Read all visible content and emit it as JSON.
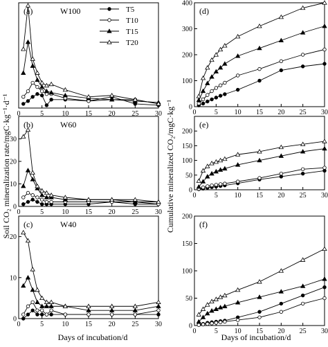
{
  "figure": {
    "ylabel_left": "Soil CO₂ mineralization rate/mgC·kg⁻¹·d⁻¹",
    "ylabel_right": "Cumulative mineralized CO₂/mgC·kg⁻¹",
    "xlabel": "Days of incubation/d"
  },
  "legend": {
    "entries": [
      "T5",
      "T10",
      "T15",
      "T20"
    ]
  },
  "chart_data": [
    {
      "id": "a",
      "panel_label": "(a)",
      "title": "W100",
      "type": "line",
      "x": [
        1,
        2,
        3,
        4,
        5,
        6,
        7,
        10,
        15,
        20,
        25,
        30
      ],
      "xlim": [
        0,
        30
      ],
      "ylim": [
        0,
        75
      ],
      "xticks": [
        0,
        5,
        10,
        15,
        20,
        25,
        30
      ],
      "yticks": [],
      "grid": false,
      "legend": "top-right",
      "series": [
        {
          "name": "T5",
          "marker": "circle-filled",
          "values": [
            3,
            5,
            8,
            10,
            9,
            2,
            6,
            6,
            5,
            8,
            3,
            2
          ]
        },
        {
          "name": "T10",
          "marker": "circle-open",
          "values": [
            8,
            12,
            18,
            15,
            12,
            10,
            10,
            7,
            5,
            6,
            6,
            3
          ]
        },
        {
          "name": "T15",
          "marker": "triangle-filled",
          "values": [
            25,
            47,
            30,
            20,
            15,
            12,
            11,
            9,
            7,
            6,
            5,
            4
          ]
        },
        {
          "name": "T20",
          "marker": "triangle-open",
          "values": [
            42,
            73,
            35,
            25,
            18,
            16,
            17,
            13,
            8,
            9,
            6,
            3
          ]
        }
      ]
    },
    {
      "id": "b",
      "panel_label": "(b)",
      "title": "W60",
      "type": "line",
      "x": [
        1,
        2,
        3,
        4,
        5,
        6,
        7,
        10,
        15,
        20,
        25,
        30
      ],
      "xlim": [
        0,
        30
      ],
      "ylim": [
        0,
        40
      ],
      "xticks": [
        0,
        5,
        10,
        15,
        20,
        25,
        30
      ],
      "yticks": [
        0,
        10,
        20,
        30
      ],
      "grid": false,
      "series": [
        {
          "name": "T5",
          "marker": "circle-filled",
          "values": [
            1,
            2,
            3,
            2,
            1,
            1,
            1,
            1,
            1,
            2,
            1,
            1
          ]
        },
        {
          "name": "T10",
          "marker": "circle-open",
          "values": [
            4,
            6,
            5,
            4,
            3,
            2,
            2,
            2,
            2,
            2,
            2,
            1
          ]
        },
        {
          "name": "T15",
          "marker": "triangle-filled",
          "values": [
            9,
            16,
            12,
            8,
            5,
            4,
            4,
            3,
            3,
            3,
            2,
            2
          ]
        },
        {
          "name": "T20",
          "marker": "triangle-open",
          "values": [
            31,
            34,
            15,
            9,
            7,
            6,
            5,
            4,
            3,
            3,
            3,
            2
          ]
        }
      ]
    },
    {
      "id": "c",
      "panel_label": "(c)",
      "title": "W40",
      "type": "line",
      "x": [
        1,
        2,
        3,
        4,
        5,
        6,
        7,
        10,
        15,
        20,
        25,
        30
      ],
      "xlim": [
        0,
        30
      ],
      "ylim": [
        0,
        25
      ],
      "xticks": [
        0,
        5,
        10,
        15,
        20,
        25,
        30
      ],
      "yticks": [
        0,
        10,
        20
      ],
      "grid": false,
      "series": [
        {
          "name": "T5",
          "marker": "circle-filled",
          "values": [
            0,
            1,
            2,
            1,
            1,
            1,
            1,
            1,
            1,
            1,
            1,
            1
          ]
        },
        {
          "name": "T10",
          "marker": "circle-open",
          "values": [
            1,
            3,
            4,
            2,
            2,
            1,
            2,
            1,
            1,
            1,
            1,
            2
          ]
        },
        {
          "name": "T15",
          "marker": "triangle-filled",
          "values": [
            8,
            10,
            7,
            4,
            3,
            3,
            3,
            3,
            2,
            2,
            2,
            3
          ]
        },
        {
          "name": "T20",
          "marker": "triangle-open",
          "values": [
            21,
            19,
            12,
            7,
            5,
            4,
            4,
            3,
            3,
            3,
            3,
            4
          ]
        }
      ]
    },
    {
      "id": "d",
      "panel_label": "(d)",
      "type": "line",
      "x": [
        1,
        2,
        3,
        4,
        5,
        6,
        7,
        10,
        15,
        20,
        25,
        30
      ],
      "xlim": [
        0,
        30
      ],
      "ylim": [
        0,
        400
      ],
      "xticks": [
        0,
        5,
        10,
        15,
        20,
        25,
        30
      ],
      "xtick_labels": [
        "0",
        "5",
        "10",
        "15",
        "20",
        "25",
        "30"
      ],
      "yticks": [
        0,
        100,
        200,
        300,
        400
      ],
      "grid": false,
      "series": [
        {
          "name": "T5",
          "marker": "circle-filled",
          "values": [
            5,
            12,
            20,
            28,
            35,
            42,
            48,
            65,
            100,
            140,
            155,
            165
          ]
        },
        {
          "name": "T10",
          "marker": "circle-open",
          "values": [
            12,
            28,
            45,
            60,
            72,
            82,
            92,
            120,
            145,
            175,
            200,
            220
          ]
        },
        {
          "name": "T15",
          "marker": "triangle-filled",
          "values": [
            25,
            60,
            90,
            115,
            135,
            150,
            165,
            195,
            225,
            255,
            285,
            310
          ]
        },
        {
          "name": "T20",
          "marker": "triangle-open",
          "values": [
            40,
            110,
            150,
            180,
            200,
            220,
            235,
            270,
            310,
            345,
            380,
            400
          ]
        }
      ]
    },
    {
      "id": "e",
      "panel_label": "(e)",
      "type": "line",
      "x": [
        1,
        2,
        3,
        4,
        5,
        6,
        7,
        10,
        15,
        20,
        25,
        30
      ],
      "xlim": [
        0,
        30
      ],
      "ylim": [
        0,
        250
      ],
      "xticks": [
        0,
        5,
        10,
        15,
        20,
        25,
        30
      ],
      "yticks": [
        0,
        50,
        100,
        150,
        200
      ],
      "grid": false,
      "series": [
        {
          "name": "T5",
          "marker": "circle-filled",
          "values": [
            2,
            4,
            7,
            9,
            11,
            13,
            15,
            22,
            35,
            45,
            55,
            65
          ]
        },
        {
          "name": "T10",
          "marker": "circle-open",
          "values": [
            3,
            8,
            12,
            15,
            17,
            19,
            21,
            28,
            40,
            55,
            70,
            75
          ]
        },
        {
          "name": "T15",
          "marker": "triangle-filled",
          "values": [
            10,
            28,
            45,
            55,
            62,
            68,
            72,
            85,
            100,
            115,
            130,
            140
          ]
        },
        {
          "name": "T20",
          "marker": "triangle-open",
          "values": [
            30,
            65,
            80,
            90,
            95,
            100,
            105,
            120,
            130,
            145,
            155,
            165
          ]
        }
      ]
    },
    {
      "id": "f",
      "panel_label": "(f)",
      "type": "line",
      "x": [
        1,
        2,
        3,
        4,
        5,
        6,
        7,
        10,
        15,
        20,
        25,
        30
      ],
      "xlim": [
        0,
        30
      ],
      "ylim": [
        0,
        200
      ],
      "xticks": [
        0,
        5,
        10,
        15,
        20,
        25,
        30
      ],
      "yticks": [
        0,
        50,
        100,
        150,
        200
      ],
      "grid": false,
      "series": [
        {
          "name": "T5",
          "marker": "circle-filled",
          "values": [
            2,
            3,
            5,
            6,
            7,
            8,
            9,
            15,
            25,
            40,
            55,
            70
          ]
        },
        {
          "name": "T10",
          "marker": "circle-open",
          "values": [
            1,
            2,
            3,
            4,
            5,
            6,
            7,
            10,
            15,
            25,
            40,
            50
          ]
        },
        {
          "name": "T15",
          "marker": "triangle-filled",
          "values": [
            7,
            15,
            22,
            27,
            30,
            33,
            35,
            42,
            52,
            62,
            72,
            85
          ]
        },
        {
          "name": "T20",
          "marker": "triangle-open",
          "values": [
            20,
            30,
            38,
            44,
            48,
            52,
            55,
            65,
            80,
            100,
            120,
            140
          ]
        }
      ]
    }
  ]
}
